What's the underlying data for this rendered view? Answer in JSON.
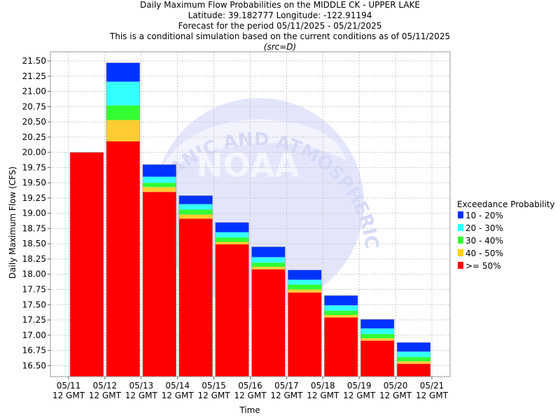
{
  "header": {
    "line1": "Daily Maximum Flow Probabilities on the MIDDLE CK - UPPER LAKE",
    "line2": "Latitude: 39.182777 Longitude: -122.91194",
    "line3": "Forecast for the period 05/11/2025 - 05/21/2025",
    "line4": "This is a conditional simulation based on the current conditions as of 05/11/2025",
    "line5": "(src=D)"
  },
  "watermark": {
    "ring_text": "OCEANIC AND ATMOSPHERIC ADMINISTRATION",
    "logo_text": "NOAA"
  },
  "colors": {
    "p10_20": "#0033ff",
    "p20_30": "#33ffff",
    "p30_40": "#33ff33",
    "p40_50": "#ffcc33",
    "p50": "#ff0000"
  },
  "chart_data": {
    "type": "bar",
    "stacked": true,
    "xlabel": "Time",
    "ylabel": "Daily Maximum Flow (CFS)",
    "ylim": [
      16.32,
      21.65
    ],
    "yticks": [
      "16.50",
      "16.75",
      "17.00",
      "17.25",
      "17.50",
      "17.75",
      "18.00",
      "18.25",
      "18.50",
      "18.75",
      "19.00",
      "19.25",
      "19.50",
      "19.75",
      "20.00",
      "20.25",
      "20.50",
      "20.75",
      "21.00",
      "21.25",
      "21.50"
    ],
    "xticks": [
      {
        "date": "05/11",
        "time": "12 GMT"
      },
      {
        "date": "05/12",
        "time": "12 GMT"
      },
      {
        "date": "05/13",
        "time": "12 GMT"
      },
      {
        "date": "05/14",
        "time": "12 GMT"
      },
      {
        "date": "05/15",
        "time": "12 GMT"
      },
      {
        "date": "05/16",
        "time": "12 GMT"
      },
      {
        "date": "05/17",
        "time": "12 GMT"
      },
      {
        "date": "05/18",
        "time": "12 GMT"
      },
      {
        "date": "05/19",
        "time": "12 GMT"
      },
      {
        "date": "05/20",
        "time": "12 GMT"
      },
      {
        "date": "05/21",
        "time": "12 GMT"
      }
    ],
    "legend": {
      "title": "Exceedance Probability",
      "placement": "right",
      "entries": [
        {
          "label": "10 - 20%",
          "color": "#0033ff"
        },
        {
          "label": "20 - 30%",
          "color": "#33ffff"
        },
        {
          "label": "30 - 40%",
          "color": "#33ff33"
        },
        {
          "label": "40 - 50%",
          "color": "#ffcc33"
        },
        {
          "label": ">= 50%",
          "color": "#ff0000"
        }
      ]
    },
    "grid": true,
    "bars": [
      {
        "start": "05/11",
        "end": "05/12",
        "p50": 20.0,
        "p40_50": 20.0,
        "p30_40": 20.0,
        "p20_30": 20.0,
        "p10_20": 20.0
      },
      {
        "start": "05/12",
        "end": "05/13",
        "p50": 20.18,
        "p40_50": 20.53,
        "p30_40": 20.77,
        "p20_30": 21.16,
        "p10_20": 21.47
      },
      {
        "start": "05/13",
        "end": "05/14",
        "p50": 19.35,
        "p40_50": 19.43,
        "p30_40": 19.5,
        "p20_30": 19.6,
        "p10_20": 19.8
      },
      {
        "start": "05/14",
        "end": "05/15",
        "p50": 18.91,
        "p40_50": 18.98,
        "p30_40": 19.06,
        "p20_30": 19.15,
        "p10_20": 19.29
      },
      {
        "start": "05/15",
        "end": "05/16",
        "p50": 18.49,
        "p40_50": 18.53,
        "p30_40": 18.6,
        "p20_30": 18.69,
        "p10_20": 18.85
      },
      {
        "start": "05/16",
        "end": "05/17",
        "p50": 18.08,
        "p40_50": 18.12,
        "p30_40": 18.19,
        "p20_30": 18.28,
        "p10_20": 18.45
      },
      {
        "start": "05/17",
        "end": "05/18",
        "p50": 17.7,
        "p40_50": 17.75,
        "p30_40": 17.83,
        "p20_30": 17.91,
        "p10_20": 18.07
      },
      {
        "start": "05/18",
        "end": "05/19",
        "p50": 17.29,
        "p40_50": 17.33,
        "p30_40": 17.4,
        "p20_30": 17.49,
        "p10_20": 17.65
      },
      {
        "start": "05/19",
        "end": "05/20",
        "p50": 16.91,
        "p40_50": 16.95,
        "p30_40": 17.02,
        "p20_30": 17.11,
        "p10_20": 17.26
      },
      {
        "start": "05/20",
        "end": "05/21",
        "p50": 16.53,
        "p40_50": 16.57,
        "p30_40": 16.64,
        "p20_30": 16.73,
        "p10_20": 16.88
      }
    ]
  }
}
